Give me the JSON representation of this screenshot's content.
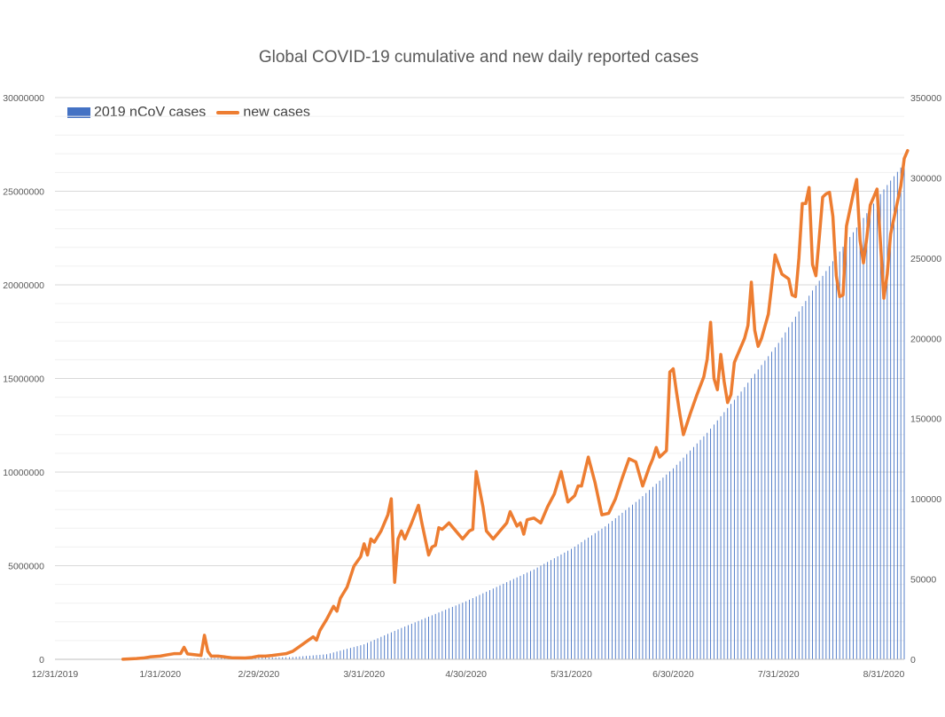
{
  "chart_data": {
    "type": "bar+line",
    "title": "Global COVID-19 cumulative and new daily reported cases",
    "legend_position": "top-left",
    "grid": true,
    "x_axis": {
      "type": "date",
      "range": [
        "2019-12-31",
        "2020-09-06"
      ],
      "tick_labels": [
        "12/31/2019",
        "1/31/2020",
        "2/29/2020",
        "3/31/2020",
        "4/30/2020",
        "5/31/2020",
        "6/30/2020",
        "7/31/2020",
        "8/31/2020"
      ]
    },
    "y_left": {
      "range": [
        0,
        30000000
      ],
      "tick_labels": [
        "0",
        "5000000",
        "10000000",
        "15000000",
        "20000000",
        "25000000",
        "30000000"
      ]
    },
    "y_right": {
      "range": [
        0,
        350000
      ],
      "tick_labels": [
        "0",
        "50000",
        "100000",
        "150000",
        "200000",
        "250000",
        "300000",
        "350000"
      ]
    },
    "series": [
      {
        "name": "2019 nCoV cases",
        "type": "bar",
        "axis": "left",
        "color": "#4472c4",
        "points": [
          [
            "2020-01-20",
            300
          ],
          [
            "2020-01-31",
            10000
          ],
          [
            "2020-02-10",
            40000
          ],
          [
            "2020-02-15",
            67000
          ],
          [
            "2020-02-29",
            86000
          ],
          [
            "2020-03-10",
            120000
          ],
          [
            "2020-03-20",
            270000
          ],
          [
            "2020-03-31",
            800000
          ],
          [
            "2020-04-10",
            1600000
          ],
          [
            "2020-04-20",
            2350000
          ],
          [
            "2020-04-30",
            3100000
          ],
          [
            "2020-05-10",
            3950000
          ],
          [
            "2020-05-20",
            4800000
          ],
          [
            "2020-05-31",
            5900000
          ],
          [
            "2020-06-10",
            7100000
          ],
          [
            "2020-06-20",
            8550000
          ],
          [
            "2020-06-30",
            10200000
          ],
          [
            "2020-07-10",
            12100000
          ],
          [
            "2020-07-20",
            14300000
          ],
          [
            "2020-07-31",
            16900000
          ],
          [
            "2020-08-10",
            19700000
          ],
          [
            "2020-08-20",
            22300000
          ],
          [
            "2020-08-31",
            25100000
          ],
          [
            "2020-09-06",
            26500000
          ]
        ]
      },
      {
        "name": "new cases",
        "type": "line",
        "axis": "right",
        "color": "#ed7d31",
        "points": [
          [
            "2020-01-20",
            100
          ],
          [
            "2020-01-22",
            300
          ],
          [
            "2020-01-24",
            500
          ],
          [
            "2020-01-26",
            800
          ],
          [
            "2020-01-28",
            1500
          ],
          [
            "2020-01-31",
            2000
          ],
          [
            "2020-02-02",
            2800
          ],
          [
            "2020-02-04",
            3500
          ],
          [
            "2020-02-06",
            3600
          ],
          [
            "2020-02-07",
            7500
          ],
          [
            "2020-02-08",
            3400
          ],
          [
            "2020-02-10",
            2900
          ],
          [
            "2020-02-12",
            2400
          ],
          [
            "2020-02-13",
            15000
          ],
          [
            "2020-02-14",
            5000
          ],
          [
            "2020-02-15",
            2000
          ],
          [
            "2020-02-17",
            2000
          ],
          [
            "2020-02-19",
            1500
          ],
          [
            "2020-02-21",
            1000
          ],
          [
            "2020-02-23",
            900
          ],
          [
            "2020-02-25",
            800
          ],
          [
            "2020-02-27",
            1200
          ],
          [
            "2020-02-29",
            2000
          ],
          [
            "2020-03-02",
            2000
          ],
          [
            "2020-03-04",
            2400
          ],
          [
            "2020-03-06",
            3000
          ],
          [
            "2020-03-08",
            3500
          ],
          [
            "2020-03-10",
            5000
          ],
          [
            "2020-03-12",
            8000
          ],
          [
            "2020-03-14",
            11000
          ],
          [
            "2020-03-16",
            14000
          ],
          [
            "2020-03-17",
            12000
          ],
          [
            "2020-03-18",
            18000
          ],
          [
            "2020-03-20",
            25000
          ],
          [
            "2020-03-22",
            33000
          ],
          [
            "2020-03-23",
            30000
          ],
          [
            "2020-03-24",
            38000
          ],
          [
            "2020-03-26",
            45000
          ],
          [
            "2020-03-28",
            58000
          ],
          [
            "2020-03-30",
            64000
          ],
          [
            "2020-03-31",
            72000
          ],
          [
            "2020-04-01",
            65000
          ],
          [
            "2020-04-02",
            75000
          ],
          [
            "2020-04-03",
            73000
          ],
          [
            "2020-04-05",
            80000
          ],
          [
            "2020-04-07",
            90000
          ],
          [
            "2020-04-08",
            100000
          ],
          [
            "2020-04-09",
            48000
          ],
          [
            "2020-04-10",
            75000
          ],
          [
            "2020-04-11",
            80000
          ],
          [
            "2020-04-12",
            75000
          ],
          [
            "2020-04-14",
            85000
          ],
          [
            "2020-04-16",
            96000
          ],
          [
            "2020-04-17",
            85000
          ],
          [
            "2020-04-19",
            65000
          ],
          [
            "2020-04-20",
            70000
          ],
          [
            "2020-04-21",
            71000
          ],
          [
            "2020-04-22",
            82000
          ],
          [
            "2020-04-23",
            81000
          ],
          [
            "2020-04-25",
            85000
          ],
          [
            "2020-04-27",
            80000
          ],
          [
            "2020-04-29",
            75000
          ],
          [
            "2020-05-01",
            80000
          ],
          [
            "2020-05-02",
            81000
          ],
          [
            "2020-05-03",
            117000
          ],
          [
            "2020-05-05",
            95000
          ],
          [
            "2020-05-06",
            80000
          ],
          [
            "2020-05-08",
            75000
          ],
          [
            "2020-05-10",
            80000
          ],
          [
            "2020-05-12",
            85000
          ],
          [
            "2020-05-13",
            92000
          ],
          [
            "2020-05-15",
            83000
          ],
          [
            "2020-05-16",
            85000
          ],
          [
            "2020-05-17",
            78000
          ],
          [
            "2020-05-18",
            87000
          ],
          [
            "2020-05-20",
            88000
          ],
          [
            "2020-05-22",
            85000
          ],
          [
            "2020-05-24",
            95000
          ],
          [
            "2020-05-26",
            103000
          ],
          [
            "2020-05-28",
            117000
          ],
          [
            "2020-05-30",
            98000
          ],
          [
            "2020-06-01",
            102000
          ],
          [
            "2020-06-02",
            108000
          ],
          [
            "2020-06-03",
            108000
          ],
          [
            "2020-06-05",
            126000
          ],
          [
            "2020-06-07",
            110000
          ],
          [
            "2020-06-09",
            90000
          ],
          [
            "2020-06-11",
            91000
          ],
          [
            "2020-06-13",
            100000
          ],
          [
            "2020-06-15",
            113000
          ],
          [
            "2020-06-17",
            125000
          ],
          [
            "2020-06-19",
            123000
          ],
          [
            "2020-06-21",
            108000
          ],
          [
            "2020-06-23",
            120000
          ],
          [
            "2020-06-24",
            125000
          ],
          [
            "2020-06-25",
            132000
          ],
          [
            "2020-06-26",
            126000
          ],
          [
            "2020-06-28",
            130000
          ],
          [
            "2020-06-29",
            179000
          ],
          [
            "2020-06-30",
            181000
          ],
          [
            "2020-07-01",
            166000
          ],
          [
            "2020-07-02",
            152000
          ],
          [
            "2020-07-03",
            140000
          ],
          [
            "2020-07-05",
            153000
          ],
          [
            "2020-07-07",
            165000
          ],
          [
            "2020-07-09",
            176000
          ],
          [
            "2020-07-10",
            187000
          ],
          [
            "2020-07-11",
            210000
          ],
          [
            "2020-07-12",
            175000
          ],
          [
            "2020-07-13",
            168000
          ],
          [
            "2020-07-14",
            190000
          ],
          [
            "2020-07-15",
            173000
          ],
          [
            "2020-07-16",
            160000
          ],
          [
            "2020-07-17",
            165000
          ],
          [
            "2020-07-18",
            185000
          ],
          [
            "2020-07-19",
            190000
          ],
          [
            "2020-07-21",
            200000
          ],
          [
            "2020-07-22",
            208000
          ],
          [
            "2020-07-23",
            235000
          ],
          [
            "2020-07-24",
            205000
          ],
          [
            "2020-07-25",
            195000
          ],
          [
            "2020-07-26",
            200000
          ],
          [
            "2020-07-28",
            215000
          ],
          [
            "2020-07-29",
            233000
          ],
          [
            "2020-07-30",
            252000
          ],
          [
            "2020-08-01",
            240000
          ],
          [
            "2020-08-03",
            237000
          ],
          [
            "2020-08-04",
            227000
          ],
          [
            "2020-08-05",
            226000
          ],
          [
            "2020-08-06",
            250000
          ],
          [
            "2020-08-07",
            284000
          ],
          [
            "2020-08-08",
            284000
          ],
          [
            "2020-08-09",
            294000
          ],
          [
            "2020-08-10",
            246000
          ],
          [
            "2020-08-11",
            239000
          ],
          [
            "2020-08-12",
            263000
          ],
          [
            "2020-08-13",
            288000
          ],
          [
            "2020-08-14",
            290000
          ],
          [
            "2020-08-15",
            291000
          ],
          [
            "2020-08-16",
            276000
          ],
          [
            "2020-08-17",
            239000
          ],
          [
            "2020-08-18",
            226000
          ],
          [
            "2020-08-19",
            227000
          ],
          [
            "2020-08-20",
            270000
          ],
          [
            "2020-08-21",
            280000
          ],
          [
            "2020-08-22",
            290000
          ],
          [
            "2020-08-23",
            299000
          ],
          [
            "2020-08-24",
            261000
          ],
          [
            "2020-08-25",
            247000
          ],
          [
            "2020-08-26",
            263000
          ],
          [
            "2020-08-27",
            283000
          ],
          [
            "2020-08-28",
            288000
          ],
          [
            "2020-08-29",
            293000
          ],
          [
            "2020-08-30",
            260000
          ],
          [
            "2020-08-31",
            225000
          ],
          [
            "2020-09-01",
            240000
          ],
          [
            "2020-09-02",
            265000
          ],
          [
            "2020-09-03",
            275000
          ],
          [
            "2020-09-04",
            285000
          ],
          [
            "2020-09-05",
            295000
          ],
          [
            "2020-09-06",
            312000
          ],
          [
            "2020-09-07",
            317000
          ]
        ]
      }
    ]
  }
}
